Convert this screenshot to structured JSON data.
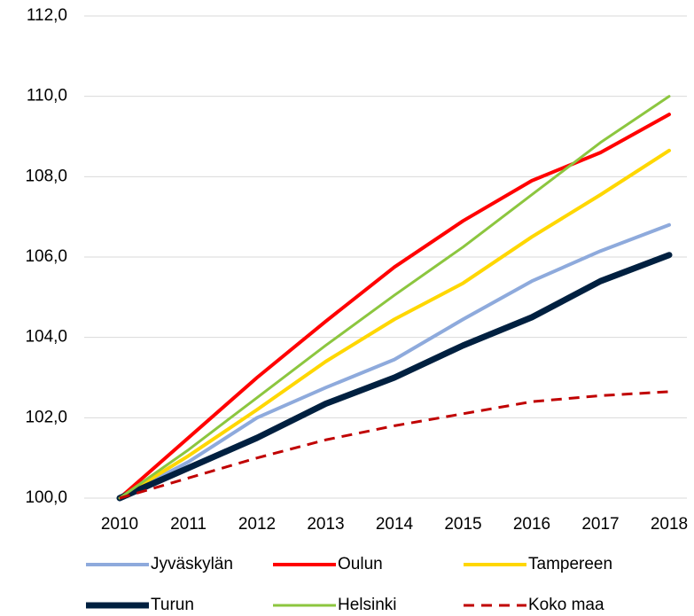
{
  "chart_data": {
    "type": "line",
    "categories": [
      "2010",
      "2011",
      "2012",
      "2013",
      "2014",
      "2015",
      "2016",
      "2017",
      "2018"
    ],
    "series": [
      {
        "name": "Jyväskylän",
        "color": "#8eaadc",
        "linestyle": "solid",
        "values": [
          100,
          100.9,
          102.0,
          102.75,
          103.45,
          104.45,
          105.4,
          106.15,
          106.8
        ]
      },
      {
        "name": "Oulun",
        "color": "#ff0000",
        "linestyle": "solid",
        "values": [
          100,
          101.5,
          103.0,
          104.4,
          105.75,
          106.9,
          107.9,
          108.6,
          109.55
        ]
      },
      {
        "name": "Tampereen",
        "color": "#ffd700",
        "linestyle": "solid",
        "values": [
          100,
          101.05,
          102.2,
          103.4,
          104.45,
          105.35,
          106.5,
          107.55,
          108.65
        ]
      },
      {
        "name": "Turun",
        "color": "#002040",
        "linestyle": "solid",
        "values": [
          100,
          100.75,
          101.5,
          102.35,
          103.0,
          103.8,
          104.5,
          105.4,
          106.05
        ]
      },
      {
        "name": "Helsinki",
        "color": "#8cc63f",
        "linestyle": "solid",
        "values": [
          100,
          101.2,
          102.5,
          103.8,
          105.05,
          106.25,
          107.55,
          108.85,
          110.0
        ]
      },
      {
        "name": "Koko maa",
        "color": "#c00000",
        "linestyle": "dashed",
        "values": [
          100,
          100.5,
          101.0,
          101.45,
          101.8,
          102.1,
          102.4,
          102.55,
          102.65
        ]
      }
    ],
    "ylim": [
      100,
      112
    ],
    "yticks": [
      {
        "value": 100,
        "label": "100,0"
      },
      {
        "value": 102,
        "label": "102,0"
      },
      {
        "value": 104,
        "label": "104,0"
      },
      {
        "value": 106,
        "label": "106,0"
      },
      {
        "value": 108,
        "label": "108,0"
      },
      {
        "value": 110,
        "label": "110,0"
      },
      {
        "value": 112,
        "label": "112,0"
      }
    ],
    "grid": true,
    "legend": "bottom"
  }
}
